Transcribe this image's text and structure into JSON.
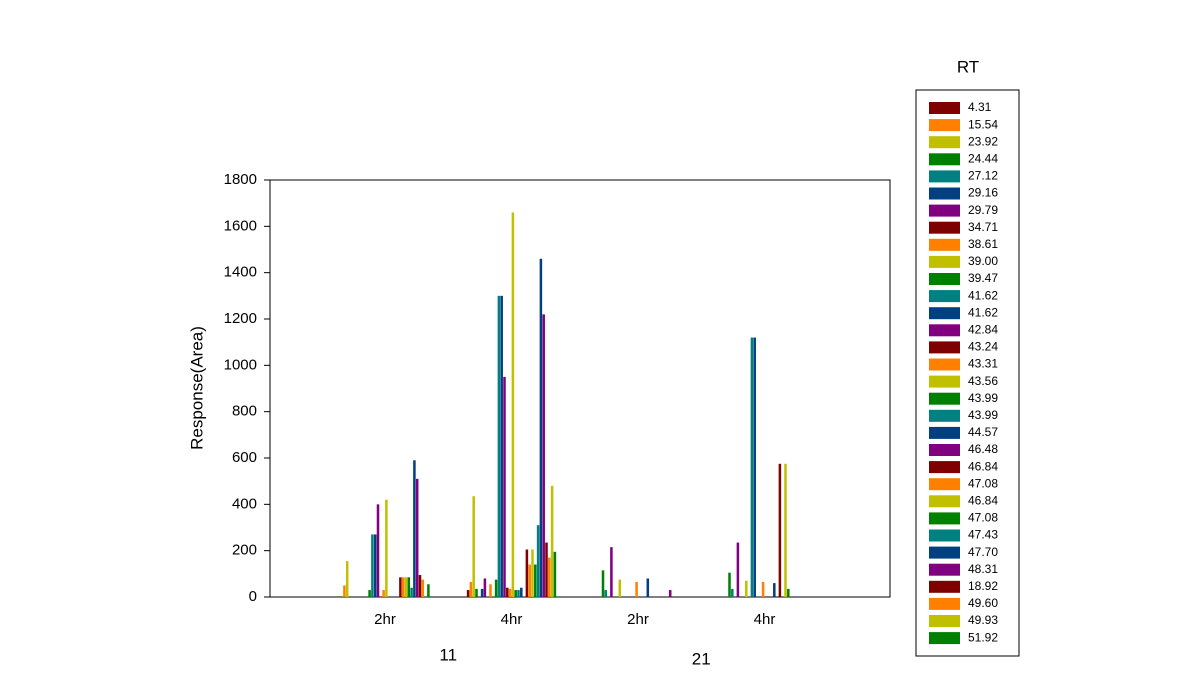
{
  "chart_data": {
    "type": "bar",
    "y_label": "Response(Area)",
    "categories": [
      "2hr",
      "4hr",
      "2hr",
      "4hr"
    ],
    "group_labels": [
      "11",
      "21"
    ],
    "legend_title": "RT",
    "ylim": [
      0,
      1800
    ],
    "yticks": [
      0,
      200,
      400,
      600,
      800,
      1000,
      1200,
      1400,
      1600,
      1800
    ],
    "legend": "right",
    "series": [
      {
        "name": "4.31",
        "color": "#7f0000",
        "values": [
          0,
          30,
          0,
          0
        ]
      },
      {
        "name": "15.54",
        "color": "#ff8000",
        "values": [
          50,
          65,
          0,
          0
        ]
      },
      {
        "name": "23.92",
        "color": "#c0c000",
        "values": [
          155,
          435,
          0,
          0
        ]
      },
      {
        "name": "24.44",
        "color": "#008000",
        "values": [
          0,
          35,
          115,
          105
        ]
      },
      {
        "name": "27.12",
        "color": "#008080",
        "values": [
          0,
          0,
          30,
          35
        ]
      },
      {
        "name": "29.16",
        "color": "#004080",
        "values": [
          0,
          35,
          0,
          0
        ]
      },
      {
        "name": "29.79",
        "color": "#800080",
        "values": [
          0,
          80,
          215,
          235
        ]
      },
      {
        "name": "34.71",
        "color": "#7f0000",
        "values": [
          0,
          0,
          0,
          0
        ]
      },
      {
        "name": "38.61",
        "color": "#ff8000",
        "values": [
          0,
          55,
          0,
          0
        ]
      },
      {
        "name": "39.00",
        "color": "#c0c000",
        "values": [
          0,
          0,
          75,
          70
        ]
      },
      {
        "name": "39.47",
        "color": "#008000",
        "values": [
          30,
          75,
          0,
          0
        ]
      },
      {
        "name": "41.62",
        "color": "#008080",
        "values": [
          270,
          1300,
          0,
          1120
        ]
      },
      {
        "name": "41.62",
        "color": "#004080",
        "values": [
          270,
          1300,
          0,
          1120
        ]
      },
      {
        "name": "42.84",
        "color": "#800080",
        "values": [
          400,
          950,
          0,
          0
        ]
      },
      {
        "name": "43.24",
        "color": "#7f0000",
        "values": [
          0,
          40,
          0,
          0
        ]
      },
      {
        "name": "43.31",
        "color": "#ff8000",
        "values": [
          30,
          35,
          65,
          65
        ]
      },
      {
        "name": "43.56",
        "color": "#c0c000",
        "values": [
          420,
          1660,
          0,
          0
        ]
      },
      {
        "name": "43.99",
        "color": "#008000",
        "values": [
          0,
          30,
          0,
          0
        ]
      },
      {
        "name": "43.99",
        "color": "#008080",
        "values": [
          0,
          30,
          0,
          0
        ]
      },
      {
        "name": "44.57",
        "color": "#004080",
        "values": [
          0,
          40,
          80,
          60
        ]
      },
      {
        "name": "46.48",
        "color": "#800080",
        "values": [
          0,
          0,
          0,
          0
        ]
      },
      {
        "name": "46.84",
        "color": "#7f0000",
        "values": [
          85,
          205,
          0,
          575
        ]
      },
      {
        "name": "47.08",
        "color": "#ff8000",
        "values": [
          85,
          140,
          0,
          0
        ]
      },
      {
        "name": "46.84",
        "color": "#c0c000",
        "values": [
          85,
          205,
          0,
          575
        ]
      },
      {
        "name": "47.08",
        "color": "#008000",
        "values": [
          85,
          140,
          0,
          35
        ]
      },
      {
        "name": "47.43",
        "color": "#008080",
        "values": [
          40,
          310,
          0,
          0
        ]
      },
      {
        "name": "47.70",
        "color": "#004080",
        "values": [
          590,
          1460,
          0,
          0
        ]
      },
      {
        "name": "48.31",
        "color": "#800080",
        "values": [
          510,
          1220,
          30,
          0
        ]
      },
      {
        "name": "18.92",
        "color": "#7f0000",
        "values": [
          95,
          235,
          0,
          0
        ]
      },
      {
        "name": "49.60",
        "color": "#ff8000",
        "values": [
          75,
          170,
          0,
          0
        ]
      },
      {
        "name": "49.93",
        "color": "#c0c000",
        "values": [
          0,
          480,
          0,
          0
        ]
      },
      {
        "name": "51.92",
        "color": "#008000",
        "values": [
          55,
          195,
          0,
          0
        ]
      }
    ]
  }
}
